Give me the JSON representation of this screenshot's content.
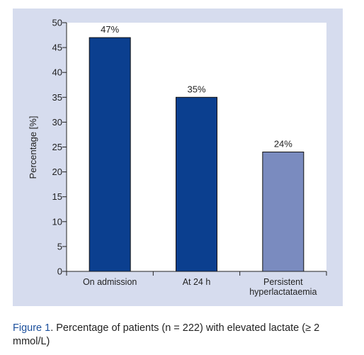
{
  "colors": {
    "panel": "#d6dcee",
    "plot_bg": "#ffffff",
    "axis": "#222222",
    "caption_label": "#1b4f9c"
  },
  "chart_data": {
    "type": "bar",
    "categories": [
      "On admission",
      "At 24 h",
      "Persistent hyperlactataemia"
    ],
    "category_lines": [
      [
        "On admission"
      ],
      [
        "At 24 h"
      ],
      [
        "Persistent",
        "hyperlactataemia"
      ]
    ],
    "values": [
      47,
      35,
      24
    ],
    "data_labels": [
      "47%",
      "35%",
      "24%"
    ],
    "bar_colors": [
      "#0b3f8f",
      "#0b3f8f",
      "#7a8bbf"
    ],
    "ylabel": "Percentage [%]",
    "xlabel": "",
    "ylim": [
      0,
      50
    ],
    "yticks": [
      0,
      5,
      10,
      15,
      20,
      25,
      30,
      35,
      40,
      45,
      50
    ],
    "grid": false,
    "legend": "none"
  },
  "caption": {
    "label": "Figure 1",
    "text": ". Percentage of patients (n = 222) with elevated lactate (≥ 2 mmol/L)"
  }
}
